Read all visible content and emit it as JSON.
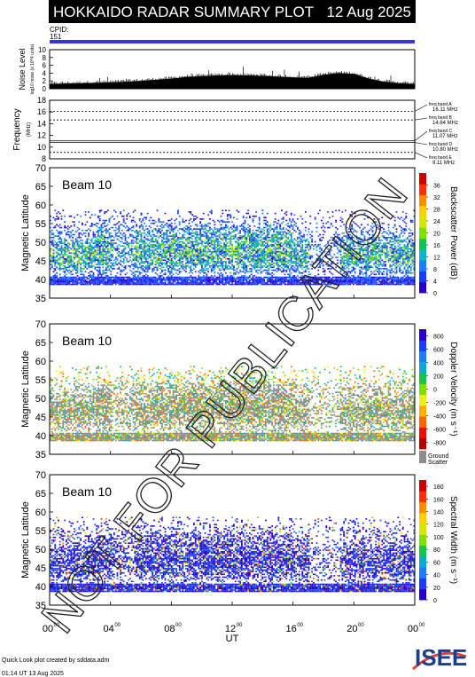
{
  "header": {
    "title": "HOKKAIDO RADAR SUMMARY PLOT",
    "date": "12 Aug 2025",
    "cpid_label": "CPID:",
    "cpid_value": "151"
  },
  "watermark": "NOT FOR PUBLICATION",
  "footer": {
    "credit": "Quick Look plot created by sddata.adm",
    "timestamp": "01:14 UT 13 Aug 2025",
    "logo_text": "ISEE"
  },
  "colors": {
    "cpid_bar": "#3333ee",
    "ground_scatter": "#8c8c8c"
  },
  "chart_data": [
    {
      "type": "area",
      "ylabel": "Noise Level",
      "ylabel_sub": "log10 noise (x 10^4 units)",
      "ylim": [
        0,
        10
      ],
      "yticks": [
        "0",
        "2",
        "4",
        "6",
        "8",
        "10"
      ],
      "x": [
        0,
        1,
        2,
        3,
        4,
        5,
        6,
        7,
        8,
        9,
        10,
        11,
        12,
        13,
        14,
        15,
        16,
        17,
        18,
        19,
        20,
        21,
        22,
        23,
        24
      ],
      "values": [
        1.2,
        1.3,
        1.4,
        1.5,
        1.6,
        1.8,
        2.0,
        2.3,
        2.6,
        3.0,
        3.2,
        3.4,
        3.5,
        3.4,
        3.3,
        3.1,
        2.9,
        2.8,
        3.6,
        4.0,
        3.8,
        2.6,
        1.8,
        1.4,
        1.2
      ]
    },
    {
      "type": "line",
      "ylabel": "Frequency",
      "yunit": "(MHz)",
      "ylim": [
        8,
        18
      ],
      "yticks": [
        "8",
        "10",
        "12",
        "14",
        "16",
        "18"
      ],
      "bands": [
        {
          "label": "freq band A",
          "mhz": "16.11 MHz",
          "value": 16.11
        },
        {
          "label": "freq band B",
          "mhz": "14.64 MHz",
          "value": 14.64
        },
        {
          "label": "freq band C",
          "mhz": "11.07 MHz",
          "value": 11.07
        },
        {
          "label": "freq band D",
          "mhz": "10.80 MHz",
          "value": 10.8
        },
        {
          "label": "freq band E",
          "mhz": "9.11 MHz",
          "value": 9.11
        }
      ]
    },
    {
      "type": "heatmap",
      "beam_label": "Beam 10",
      "ylabel": "Magnetic Latitude",
      "ylim": [
        35,
        70
      ],
      "yticks": [
        "35",
        "40",
        "45",
        "50",
        "55",
        "60",
        "65",
        "70"
      ],
      "colorbar_label": "Backscatter Power (dB)",
      "colorbar_ticks": [
        "0",
        "4",
        "8",
        "12",
        "16",
        "20",
        "24",
        "28",
        "32",
        "36"
      ],
      "colorbar_range": [
        0,
        40
      ],
      "scatter_band": [
        38.5,
        58.5
      ]
    },
    {
      "type": "heatmap",
      "beam_label": "Beam 10",
      "ylabel": "Magnetic Latitude",
      "ylim": [
        35,
        70
      ],
      "yticks": [
        "35",
        "40",
        "45",
        "50",
        "55",
        "60",
        "65",
        "70"
      ],
      "colorbar_label": "Doppler Velocity (m s⁻¹)",
      "colorbar_ticks": [
        "-800",
        "-600",
        "-400",
        "-200",
        "0",
        "200",
        "400",
        "600",
        "800"
      ],
      "colorbar_range": [
        -900,
        900
      ],
      "ground_scatter_label": [
        "Ground",
        "Scatter"
      ],
      "scatter_band": [
        38.5,
        58.5
      ]
    },
    {
      "type": "heatmap",
      "beam_label": "Beam 10",
      "ylabel": "Magnetic Latitude",
      "ylim": [
        35,
        70
      ],
      "yticks": [
        "35",
        "40",
        "45",
        "50",
        "55",
        "60",
        "65",
        "70"
      ],
      "colorbar_label": "Spectral Width (m s⁻¹)",
      "colorbar_ticks": [
        "0",
        "20",
        "40",
        "60",
        "80",
        "100",
        "120",
        "140",
        "160",
        "180"
      ],
      "colorbar_range": [
        0,
        190
      ],
      "scatter_band": [
        38.5,
        58.5
      ]
    }
  ],
  "xaxis": {
    "label": "UT",
    "range": [
      0,
      24
    ],
    "ticks": [
      {
        "h": 0,
        "hh": "00",
        "mm": "00"
      },
      {
        "h": 4,
        "hh": "04",
        "mm": "00"
      },
      {
        "h": 8,
        "hh": "08",
        "mm": "00"
      },
      {
        "h": 12,
        "hh": "12",
        "mm": "00"
      },
      {
        "h": 16,
        "hh": "16",
        "mm": "00"
      },
      {
        "h": 20,
        "hh": "20",
        "mm": "00"
      },
      {
        "h": 24,
        "hh": "00",
        "mm": "00"
      }
    ]
  }
}
